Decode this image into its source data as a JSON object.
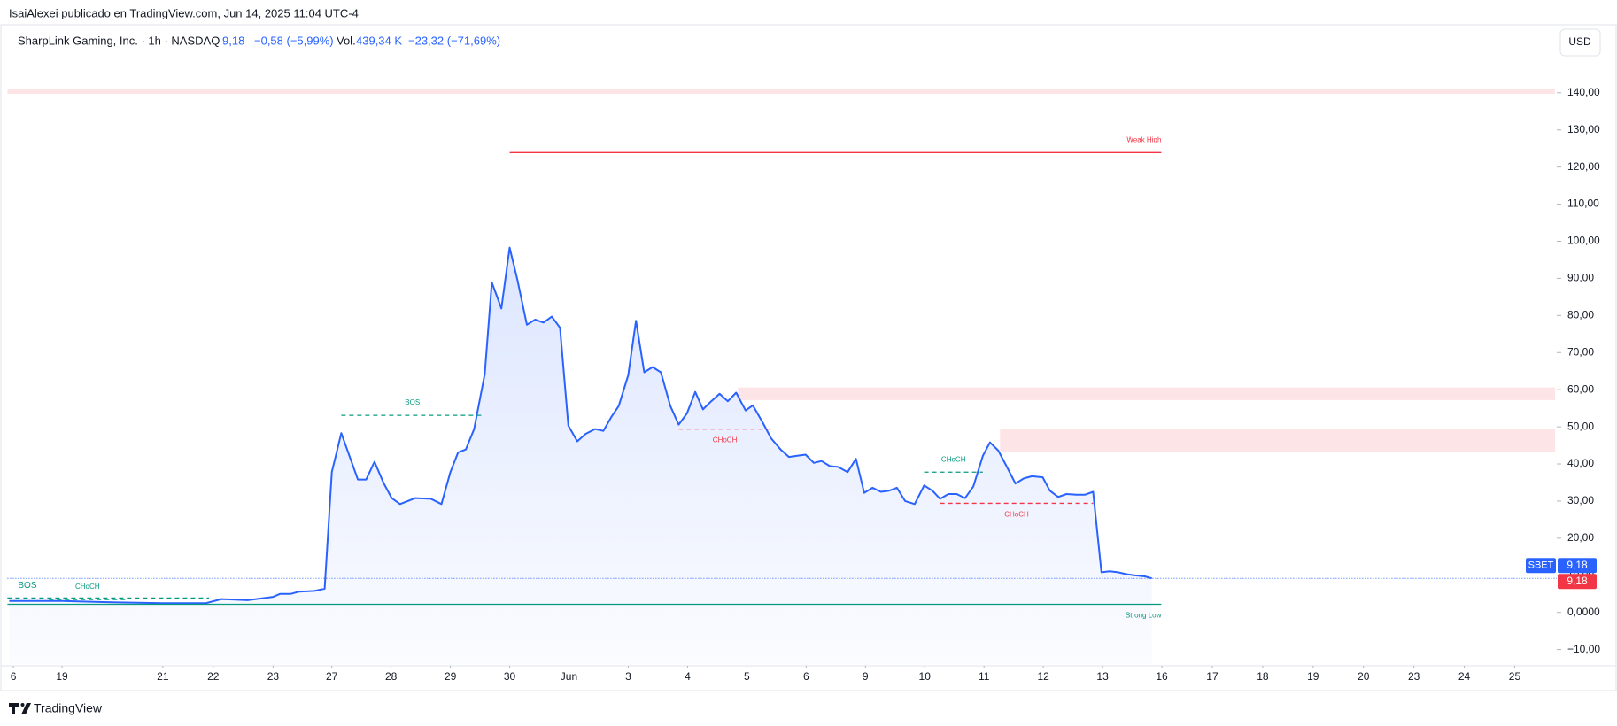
{
  "header": {
    "publisher": "IsaiAlexei publicado en TradingView.com, Jun 14, 2025 11:04 UTC-4",
    "symbol": "SharpLink Gaming, Inc. · 1h · NASDAQ",
    "price": "9,18",
    "change": "−0,58 (−5,99%)",
    "volume_label": "Vol.",
    "volume": "439,34 K",
    "volume_change": "−23,32 (−71,69%)",
    "currency": "USD",
    "brand": "TradingView"
  },
  "chart_data": {
    "type": "area",
    "series": [
      {
        "name": "SBET",
        "color": "#2962ff",
        "x": [
          -0.07,
          0.82,
          1.51,
          2.52,
          3.25,
          3.51,
          3.95,
          4.38,
          4.5,
          4.68,
          4.82,
          5.08,
          5.25,
          5.37,
          5.53,
          5.81,
          5.95,
          6.09,
          6.24,
          6.38,
          6.52,
          6.78,
          7.04,
          7.22,
          7.37,
          7.5,
          7.63,
          7.77,
          7.95,
          8.07,
          8.23,
          8.37,
          8.5,
          8.66,
          8.8,
          8.94,
          9.08,
          9.22,
          9.36,
          9.51,
          9.65,
          9.81,
          9.95,
          10.09,
          10.21,
          10.37,
          10.5,
          10.64,
          10.78,
          10.92,
          11.08,
          11.22,
          11.36,
          11.5,
          11.63,
          11.77,
          11.91,
          12.05,
          12.19,
          12.35,
          12.47,
          12.64,
          12.78,
          12.94,
          13.08,
          13.22,
          13.36,
          13.5,
          13.63,
          13.77,
          13.91,
          14.07,
          14.21,
          14.35,
          14.49,
          14.63,
          14.77,
          14.9,
          15.04,
          15.2,
          15.36,
          15.5,
          15.63,
          15.77,
          15.91,
          16.05,
          16.19,
          16.35,
          16.47,
          16.61,
          16.75,
          16.9,
          17.04,
          17.18,
          17.36,
          17.48,
          17.62,
          17.76,
          17.93,
          18.07,
          18.21,
          18.35,
          18.49,
          18.63,
          18.77,
          18.9,
          19.08,
          19.2
        ],
        "values": [
          3.1,
          3.1,
          2.8,
          2.5,
          2.5,
          3.6,
          3.3,
          4.2,
          5.0,
          5.0,
          5.6,
          5.8,
          6.4,
          37.8,
          48.3,
          35.8,
          35.8,
          40.6,
          35.0,
          30.8,
          29.2,
          30.8,
          30.6,
          29.2,
          37.8,
          43.1,
          43.9,
          49.4,
          64.2,
          88.9,
          81.9,
          98.3,
          89.7,
          77.5,
          78.9,
          78.1,
          79.7,
          76.7,
          50.3,
          46.1,
          48.1,
          49.4,
          48.9,
          52.8,
          55.6,
          63.9,
          78.6,
          64.7,
          66.1,
          64.7,
          55.6,
          50.6,
          53.6,
          59.4,
          54.7,
          56.9,
          58.9,
          56.9,
          59.2,
          54.4,
          55.8,
          51.1,
          46.9,
          43.9,
          41.9,
          42.2,
          42.5,
          40.3,
          40.8,
          39.4,
          39.2,
          37.8,
          41.4,
          32.2,
          33.6,
          32.5,
          32.8,
          33.6,
          30.0,
          29.2,
          34.2,
          32.8,
          30.6,
          31.9,
          31.9,
          30.8,
          33.9,
          42.2,
          45.8,
          43.6,
          39.4,
          34.7,
          36.1,
          36.7,
          36.4,
          32.8,
          31.1,
          31.9,
          31.7,
          31.7,
          32.5,
          10.8,
          11.1,
          10.8,
          10.3,
          10.0,
          9.7,
          9.18
        ]
      }
    ],
    "last_price": {
      "value": 9.18,
      "label": "9,18",
      "symbol": "SBET",
      "color": "#2962ff"
    },
    "close_price": {
      "value": 9.18,
      "label": "9,18",
      "color": "#f23645"
    },
    "zones": [
      {
        "y": [
          139.7,
          141.1
        ],
        "x": [
          -0.1,
          26
        ]
      },
      {
        "y": [
          57.2,
          60.6
        ],
        "x": [
          12.22,
          26
        ]
      },
      {
        "y": [
          43.3,
          49.4
        ],
        "x": [
          16.64,
          26
        ]
      }
    ],
    "zone_color": "rgba(242,54,69,0.13)",
    "levels": [
      {
        "label": "Weak High",
        "value": 123.9,
        "x": [
          8.37,
          19.36
        ],
        "color": "#f23645",
        "style": "solid",
        "label_side": "above",
        "label_align": "end"
      },
      {
        "label": "BOS",
        "value": 53.1,
        "x": [
          5.53,
          7.93
        ],
        "color": "#089981",
        "style": "dashed",
        "label_side": "above",
        "label_align": "center"
      },
      {
        "label": "CHoCH",
        "value": 49.4,
        "x": [
          11.22,
          12.78
        ],
        "color": "#f23645",
        "style": "dashed",
        "label_side": "below",
        "label_align": "center"
      },
      {
        "label": "CHoCH",
        "value": 37.8,
        "x": [
          15.36,
          16.35
        ],
        "color": "#089981",
        "style": "dashed",
        "label_side": "above",
        "label_align": "center"
      },
      {
        "label": "CHoCH",
        "value": 29.4,
        "x": [
          15.63,
          18.21
        ],
        "color": "#f23645",
        "style": "dashed",
        "label_side": "below",
        "label_align": "center"
      },
      {
        "label": "BOS",
        "value": 3.9,
        "x": [
          -0.1,
          3.3
        ],
        "color": "#089981",
        "style": "dashed",
        "label_side": "above",
        "label_align": "start"
      },
      {
        "label": "CHoCH",
        "value": 3.5,
        "x": [
          0.6,
          1.9
        ],
        "color": "#089981",
        "style": "dashed",
        "label_side": "above",
        "label_align": "center"
      },
      {
        "label": "Strong Low",
        "value": 2.2,
        "x": [
          -0.1,
          19.36
        ],
        "color": "#089981",
        "style": "solid",
        "label_side": "below",
        "label_align": "end"
      }
    ],
    "xlim": [
      -0.1,
      26
    ],
    "ylim": [
      -14,
      151
    ],
    "xticks": [
      {
        "value": 0,
        "label": "6"
      },
      {
        "value": 0.82,
        "label": "19"
      },
      {
        "value": 2.52,
        "label": "21"
      },
      {
        "value": 3.37,
        "label": "22"
      },
      {
        "value": 4.38,
        "label": "23"
      },
      {
        "value": 5.37,
        "label": "27"
      },
      {
        "value": 6.37,
        "label": "28"
      },
      {
        "value": 7.37,
        "label": "29"
      },
      {
        "value": 8.37,
        "label": "30"
      },
      {
        "value": 9.37,
        "label": "Jun"
      },
      {
        "value": 10.37,
        "label": "3"
      },
      {
        "value": 11.37,
        "label": "4"
      },
      {
        "value": 12.37,
        "label": "5"
      },
      {
        "value": 13.37,
        "label": "6"
      },
      {
        "value": 14.37,
        "label": "9"
      },
      {
        "value": 15.37,
        "label": "10"
      },
      {
        "value": 16.37,
        "label": "11"
      },
      {
        "value": 17.37,
        "label": "12"
      },
      {
        "value": 18.37,
        "label": "13"
      },
      {
        "value": 19.37,
        "label": "16"
      },
      {
        "value": 20.22,
        "label": "17"
      },
      {
        "value": 21.07,
        "label": "18"
      },
      {
        "value": 21.92,
        "label": "19"
      },
      {
        "value": 22.77,
        "label": "20"
      },
      {
        "value": 23.62,
        "label": "23"
      },
      {
        "value": 24.47,
        "label": "24"
      },
      {
        "value": 25.32,
        "label": "25"
      }
    ],
    "yticks": [
      {
        "value": -10,
        "label": "−10,00"
      },
      {
        "value": 0,
        "label": "0,0000"
      },
      {
        "value": 10,
        "label": "10,00"
      },
      {
        "value": 20,
        "label": "20,00"
      },
      {
        "value": 30,
        "label": "30,00"
      },
      {
        "value": 40,
        "label": "40,00"
      },
      {
        "value": 50,
        "label": "50,00"
      },
      {
        "value": 60,
        "label": "60,00"
      },
      {
        "value": 70,
        "label": "70,00"
      },
      {
        "value": 80,
        "label": "80,00"
      },
      {
        "value": 90,
        "label": "90,00"
      },
      {
        "value": 100,
        "label": "100,00"
      },
      {
        "value": 110,
        "label": "110,00"
      },
      {
        "value": 120,
        "label": "120,00"
      },
      {
        "value": 130,
        "label": "130,00"
      },
      {
        "value": 140,
        "label": "140,00"
      }
    ],
    "grid": false
  }
}
